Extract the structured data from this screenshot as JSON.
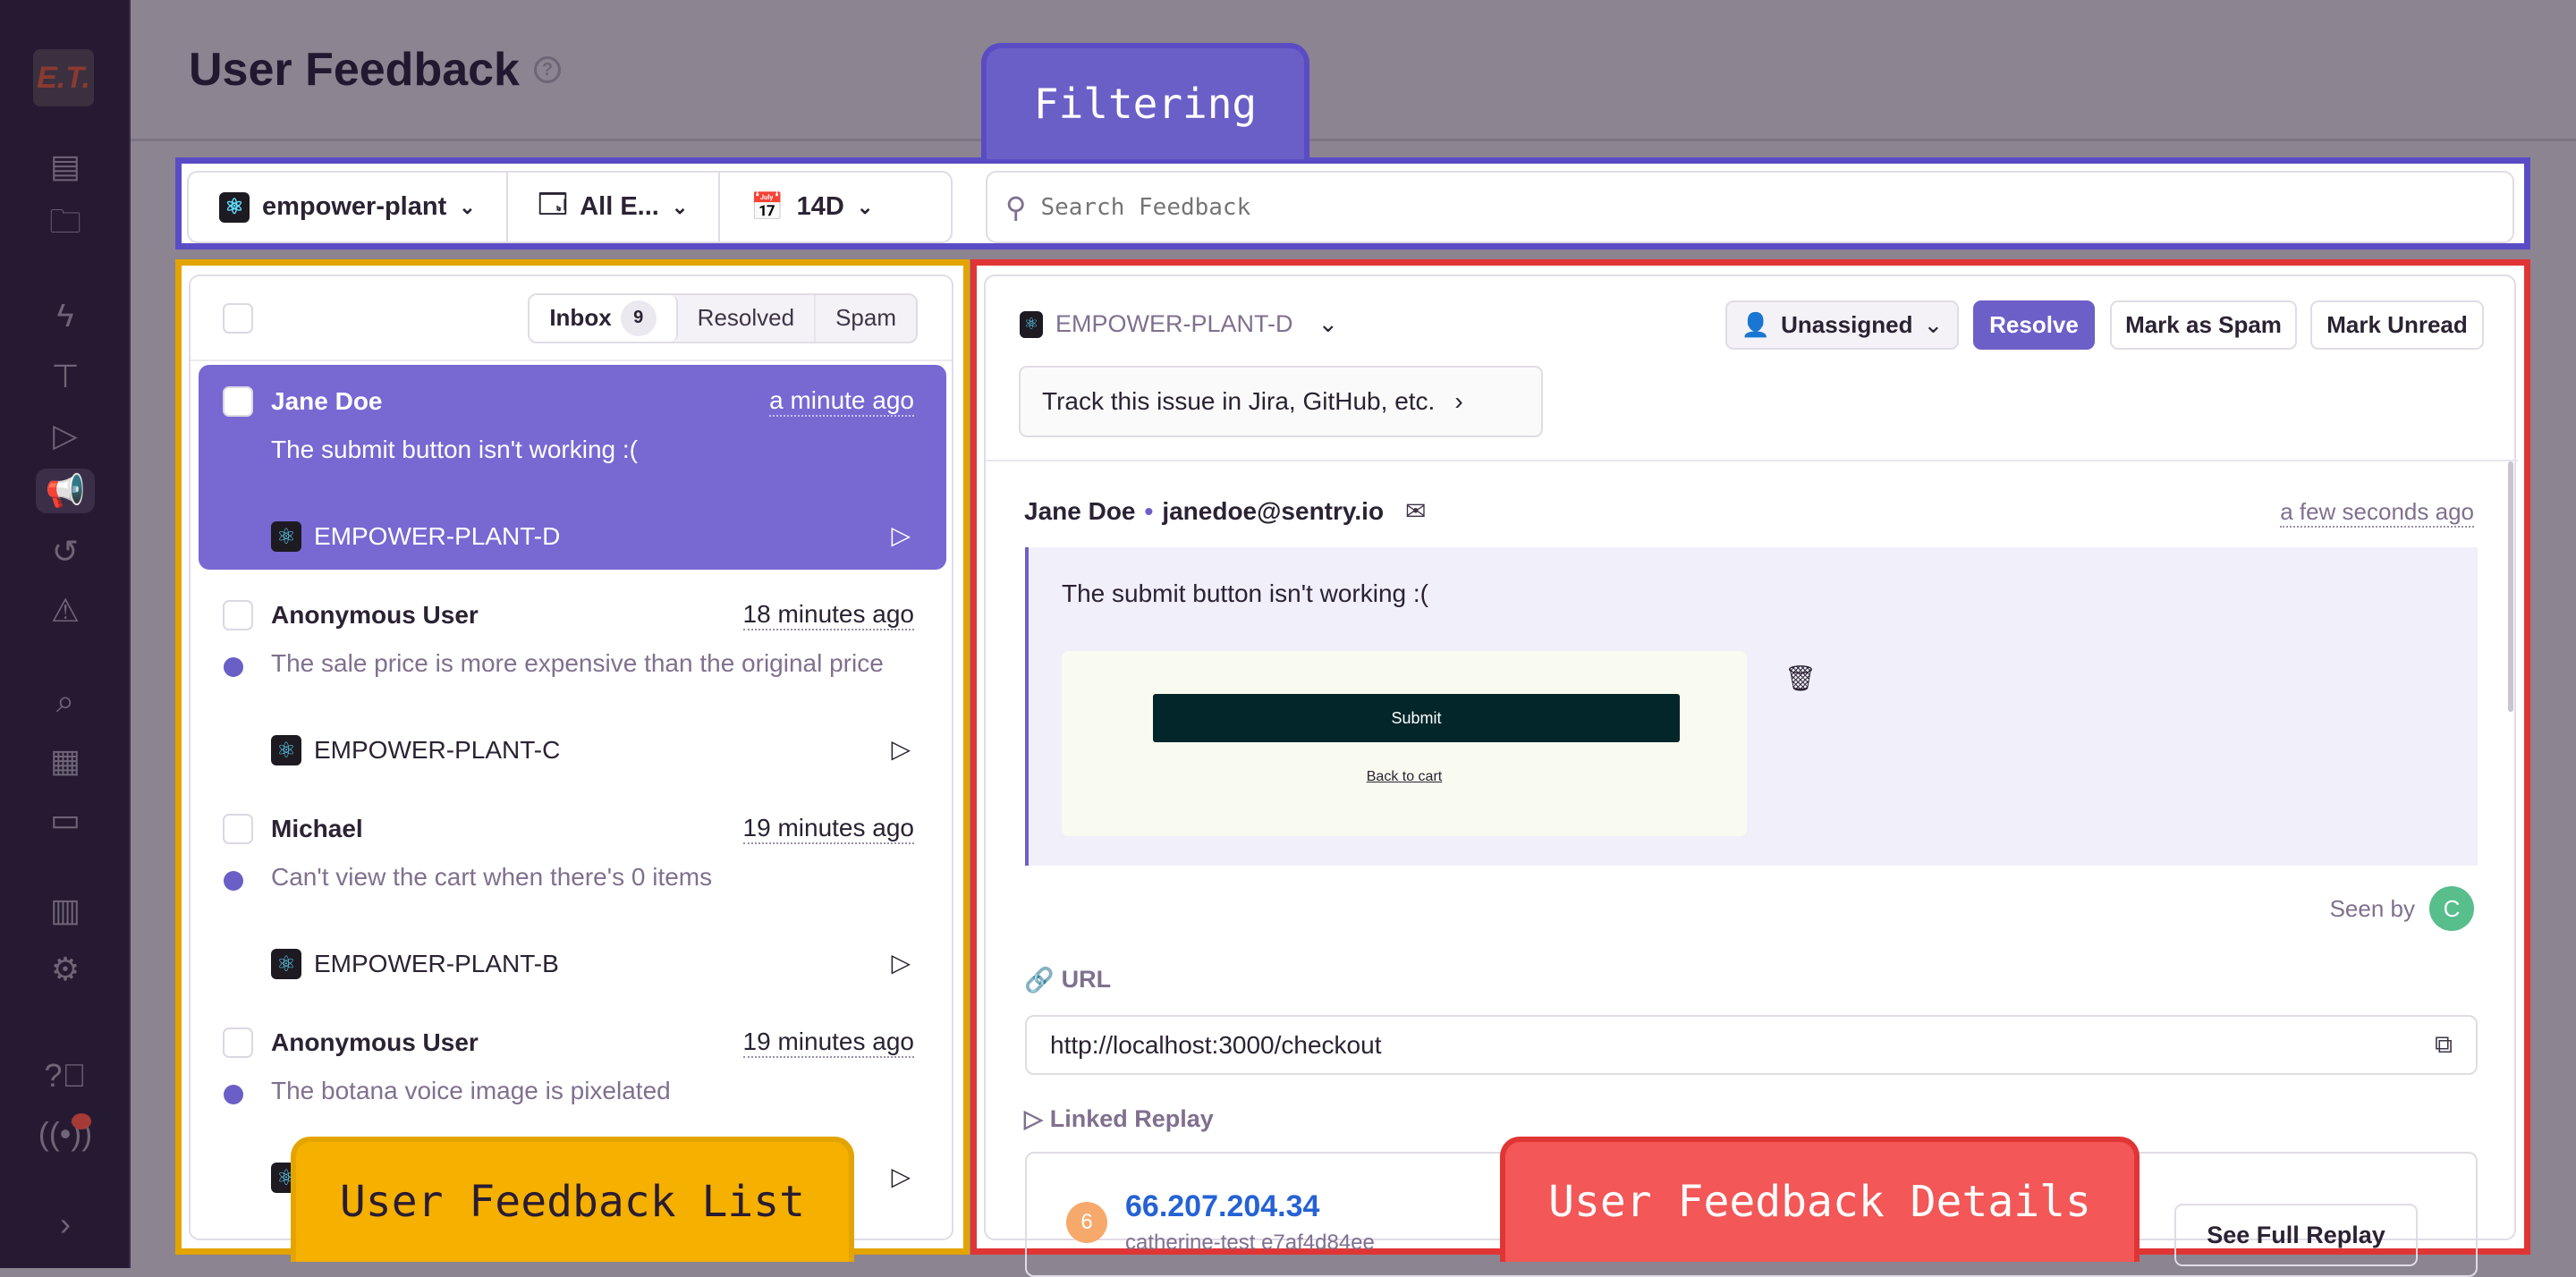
{
  "sidebar": {
    "logo": "E.T.",
    "icons": [
      "issues-icon",
      "projects-icon",
      "performance-icon",
      "profiling-icon",
      "replays-icon",
      "user-feedback-icon",
      "releases-icon",
      "alerts-icon",
      "discover-icon",
      "dashboards-icon",
      "insights-icon",
      "stats-icon",
      "settings-icon",
      "help-icon",
      "broadcast-icon",
      "expand-icon"
    ]
  },
  "header": {
    "title": "User Feedback"
  },
  "annotations": {
    "filtering": "Filtering",
    "list": "User Feedback List",
    "details": "User Feedback Details"
  },
  "filters": {
    "project": "empower-plant",
    "environment": "All E...",
    "date": "14D",
    "search_placeholder": "Search Feedback"
  },
  "list": {
    "tabs": [
      {
        "label": "Inbox",
        "count": "9"
      },
      {
        "label": "Resolved"
      },
      {
        "label": "Spam"
      }
    ],
    "items": [
      {
        "name": "Jane Doe",
        "time": "a minute ago",
        "message": "The submit button isn't working :(",
        "project": "EMPOWER-PLANT-D",
        "selected": true,
        "unread": false
      },
      {
        "name": "Anonymous User",
        "time": "18 minutes ago",
        "message": "The sale price is more expensive than the original price",
        "project": "EMPOWER-PLANT-C",
        "unread": true
      },
      {
        "name": "Michael",
        "time": "19 minutes ago",
        "message": "Can't view the cart when there's 0 items",
        "project": "EMPOWER-PLANT-B",
        "unread": true
      },
      {
        "name": "Anonymous User",
        "time": "19 minutes ago",
        "message": "The botana voice image is pixelated",
        "project": "",
        "unread": true
      }
    ]
  },
  "details": {
    "project": "EMPOWER-PLANT-D",
    "assignee": "Unassigned",
    "resolve": "Resolve",
    "mark_spam": "Mark as Spam",
    "mark_unread": "Mark Unread",
    "track": "Track this issue in Jira, GitHub, etc.",
    "user_name": "Jane Doe",
    "separator": "•",
    "email": "janedoe@sentry.io",
    "time": "a few seconds ago",
    "message": "The submit button isn't working :(",
    "screenshot": {
      "button": "Submit",
      "link": "Back to cart"
    },
    "seen_by": "Seen by",
    "seen_avatar": "C",
    "url_label": "URL",
    "url": "http://localhost:3000/checkout",
    "replay_label": "Linked Replay",
    "replay": {
      "avatar": "6",
      "ip": "66.207.204.34",
      "subtitle": "catherine-test e7af4d84ee",
      "button": "See Full Replay"
    },
    "colors": {
      "accent": "#6c5fc7",
      "avatar_seen": "#57be8c",
      "avatar_replay": "#f7a96c",
      "link": "#2562d4"
    }
  }
}
